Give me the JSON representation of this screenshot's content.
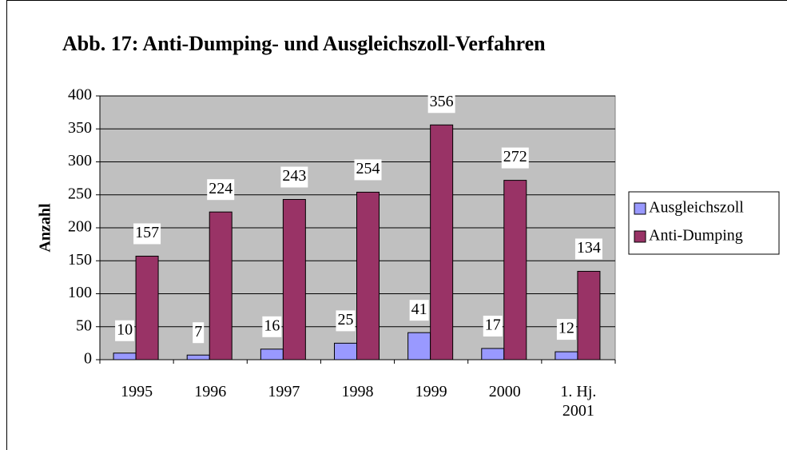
{
  "chart_data": {
    "type": "bar",
    "title": "Abb. 17: Anti-Dumping- und Ausgleichszoll-Verfahren",
    "y_label": "Anzahl",
    "categories": [
      "1995",
      "1996",
      "1997",
      "1998",
      "1999",
      "2000",
      "1. Hj. 2001"
    ],
    "series": [
      {
        "name": "Ausgleichszoll",
        "color": "#9999ff",
        "values": [
          10,
          7,
          16,
          25,
          41,
          17,
          12
        ]
      },
      {
        "name": "Anti-Dumping",
        "color": "#993366",
        "values": [
          157,
          224,
          243,
          254,
          356,
          272,
          134
        ]
      }
    ],
    "ylim": [
      0,
      400
    ],
    "yticks": [
      0,
      50,
      100,
      150,
      200,
      250,
      300,
      350,
      400
    ],
    "grid": true,
    "legend": "right",
    "plot_background": "#c0c0c0"
  }
}
